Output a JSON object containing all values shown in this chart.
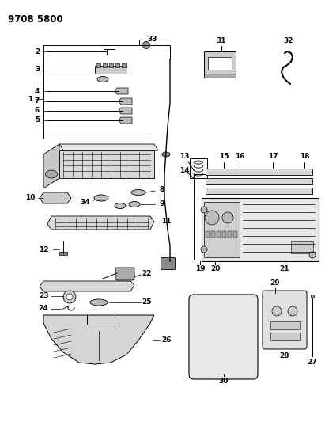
{
  "title": "9708 5800",
  "background_color": "#ffffff",
  "line_color": "#000000",
  "figsize": [
    4.11,
    5.33
  ],
  "dpi": 100
}
